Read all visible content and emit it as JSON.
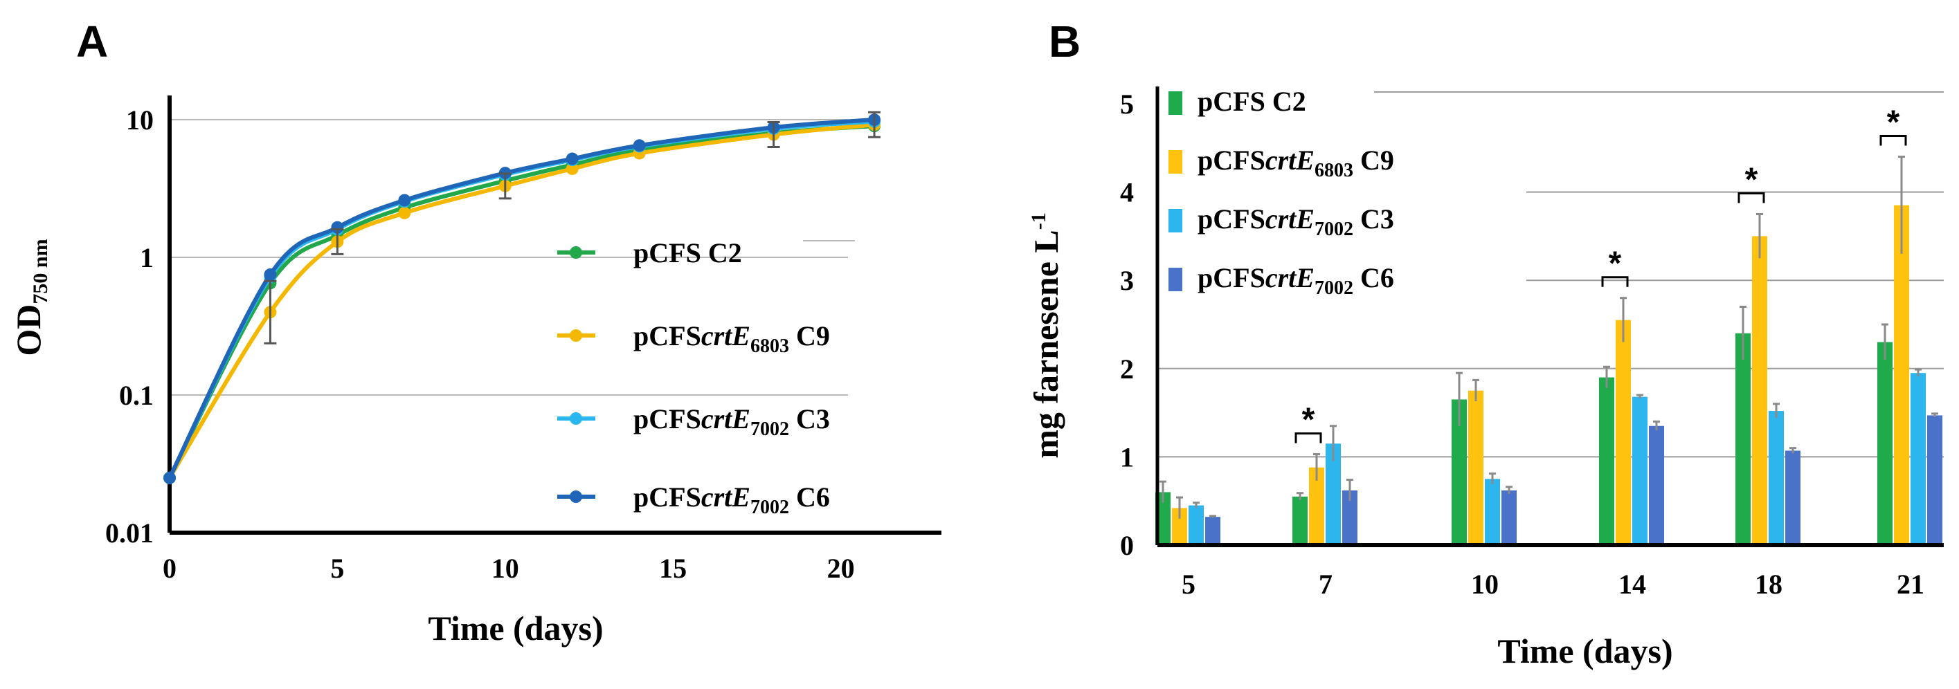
{
  "chart_data": [
    {
      "panel": "A",
      "type": "line",
      "xlabel": "Time (days)",
      "ylabel": "OD",
      "ylabel_subscript": "750 nm",
      "yscale": "log",
      "xlim": [
        0,
        23
      ],
      "ylim": [
        0.01,
        15
      ],
      "xticks": [
        0,
        5,
        10,
        15,
        20
      ],
      "yticks": [
        {
          "value": 0.01,
          "label": "0.01"
        },
        {
          "value": 0.1,
          "label": "0.1"
        },
        {
          "value": 1,
          "label": "1"
        },
        {
          "value": 10,
          "label": "10"
        }
      ],
      "series": [
        {
          "name": "pCFS C2",
          "legend_main": "pCFS",
          "legend_sub": "",
          "legend_suffix": " C2",
          "color": "#22a84a",
          "x": [
            0,
            3,
            5,
            7,
            10,
            12,
            14,
            18,
            21
          ],
          "y": [
            0.025,
            0.65,
            1.45,
            2.3,
            3.6,
            4.7,
            6.0,
            8.0,
            9.0
          ]
        },
        {
          "name": "pCFScrtE6803 C9",
          "legend_main": "pCFS",
          "legend_italic": "crtE",
          "legend_sub": "6803",
          "legend_suffix": " C9",
          "color": "#f5b800",
          "x": [
            0,
            3,
            5,
            7,
            10,
            12,
            14,
            18,
            21
          ],
          "y": [
            0.025,
            0.4,
            1.3,
            2.1,
            3.3,
            4.4,
            5.7,
            7.8,
            9.2
          ]
        },
        {
          "name": "pCFScrtE7002 C3",
          "legend_main": "pCFS",
          "legend_italic": "crtE",
          "legend_sub": "7002",
          "legend_suffix": " C3",
          "color": "#2ab6ee",
          "x": [
            0,
            3,
            5,
            7,
            10,
            12,
            14,
            18,
            21
          ],
          "y": [
            0.025,
            0.72,
            1.6,
            2.55,
            4.0,
            5.1,
            6.4,
            8.6,
            9.7
          ]
        },
        {
          "name": "pCFScrtE7002 C6",
          "legend_main": "pCFS",
          "legend_italic": "crtE",
          "legend_sub": "7002",
          "legend_suffix": " C6",
          "color": "#1f66b8",
          "x": [
            0,
            3,
            5,
            7,
            10,
            12,
            14,
            18,
            21
          ],
          "y": [
            0.025,
            0.75,
            1.65,
            2.6,
            4.1,
            5.2,
            6.5,
            8.8,
            10.0
          ]
        }
      ]
    },
    {
      "panel": "B",
      "type": "bar",
      "xlabel": "Time (days)",
      "ylabel": "mg farnesene L",
      "ylabel_superscript": "-1",
      "ylim": [
        0,
        5
      ],
      "yticks": [
        0,
        1,
        2,
        3,
        4,
        5
      ],
      "categories": [
        "5",
        "7",
        "10",
        "14",
        "18",
        "21"
      ],
      "significant": [
        "",
        "*",
        "",
        "*",
        "*",
        "*"
      ],
      "series": [
        {
          "name": "pCFS C2",
          "legend_main": "pCFS",
          "legend_sub": "",
          "legend_suffix": " C2",
          "color": "#1fab4c",
          "values": [
            0.6,
            0.55,
            1.65,
            1.9,
            2.4,
            2.3
          ],
          "errors": [
            0.12,
            0.04,
            0.3,
            0.12,
            0.3,
            0.2
          ]
        },
        {
          "name": "pCFScrtE6803 C9",
          "legend_main": "pCFS",
          "legend_italic": "crtE",
          "legend_sub": "6803",
          "legend_suffix": " C9",
          "color": "#ffc20e",
          "values": [
            0.42,
            0.88,
            1.75,
            2.55,
            3.5,
            3.85
          ],
          "errors": [
            0.12,
            0.15,
            0.12,
            0.25,
            0.25,
            0.55
          ]
        },
        {
          "name": "pCFScrtE7002 C3",
          "legend_main": "pCFS",
          "legend_italic": "crtE",
          "legend_sub": "7002",
          "legend_suffix": " C3",
          "color": "#2db6ee",
          "values": [
            0.45,
            1.15,
            0.75,
            1.68,
            1.52,
            1.95
          ],
          "errors": [
            0.03,
            0.2,
            0.06,
            0.02,
            0.08,
            0.04
          ]
        },
        {
          "name": "pCFScrtE7002 C6",
          "legend_main": "pCFS",
          "legend_italic": "crtE",
          "legend_sub": "7002",
          "legend_suffix": " C6",
          "color": "#4a72c8",
          "values": [
            0.32,
            0.62,
            0.62,
            1.35,
            1.07,
            1.47
          ],
          "errors": [
            0.01,
            0.12,
            0.04,
            0.05,
            0.03,
            0.02
          ]
        }
      ]
    }
  ]
}
